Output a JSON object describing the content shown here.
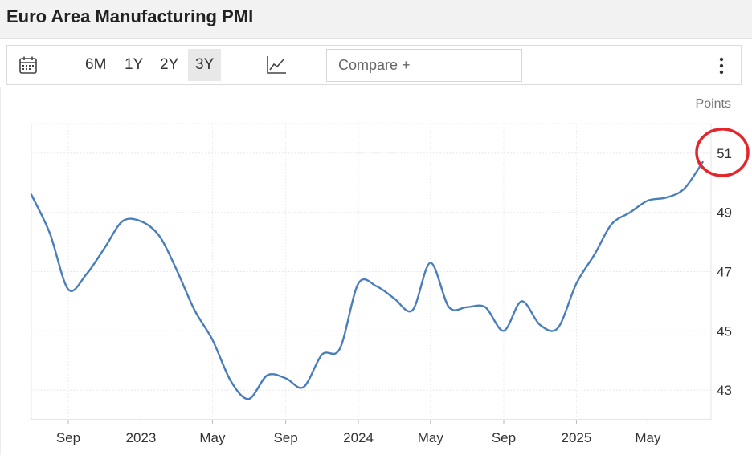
{
  "title": "Euro Area Manufacturing PMI",
  "toolbar": {
    "ranges": [
      "6M",
      "1Y",
      "2Y",
      "3Y"
    ],
    "active_range": "3Y",
    "compare_label": "Compare +",
    "icons": [
      "calendar-icon",
      "line-chart-icon",
      "more-vertical-icon"
    ]
  },
  "chart_data": {
    "type": "line",
    "unit_label": "Points",
    "ylim": [
      42,
      52
    ],
    "yticks": [
      "51",
      "49",
      "47",
      "45",
      "43"
    ],
    "xticks": [
      "Sep",
      "2023",
      "May",
      "Sep",
      "2024",
      "May",
      "Sep",
      "2025",
      "May"
    ],
    "grid": true,
    "line_color": "#4a7ebb",
    "highlight_color": "#e3262b",
    "highlight_label": "51",
    "series": [
      {
        "x": [
          "2022-07-01",
          "2022-08-01",
          "2022-09-01",
          "2022-10-01",
          "2022-11-01",
          "2022-12-01",
          "2023-01-01",
          "2023-02-01",
          "2023-03-01",
          "2023-04-01",
          "2023-05-01",
          "2023-06-01",
          "2023-07-01",
          "2023-08-01",
          "2023-09-01",
          "2023-10-01",
          "2023-11-01",
          "2023-12-01",
          "2024-01-01",
          "2024-02-01",
          "2024-03-01",
          "2024-04-01",
          "2024-05-01",
          "2024-06-01",
          "2024-07-01",
          "2024-08-01",
          "2024-09-01",
          "2024-10-01",
          "2024-11-01",
          "2024-12-01",
          "2025-01-01",
          "2025-02-01",
          "2025-03-01",
          "2025-04-01",
          "2025-05-01",
          "2025-06-01",
          "2025-07-01",
          "2025-08-01"
        ],
        "values": [
          49.6,
          48.3,
          46.4,
          46.9,
          47.8,
          48.7,
          48.7,
          48.2,
          47.1,
          45.7,
          44.7,
          43.3,
          42.7,
          43.5,
          43.4,
          43.1,
          44.2,
          44.4,
          46.6,
          46.5,
          46.1,
          45.7,
          47.3,
          45.8,
          45.8,
          45.8,
          45.0,
          46.0,
          45.2,
          45.1,
          46.6,
          47.6,
          48.6,
          49.0,
          49.4,
          49.5,
          49.8,
          50.7
        ]
      }
    ]
  }
}
